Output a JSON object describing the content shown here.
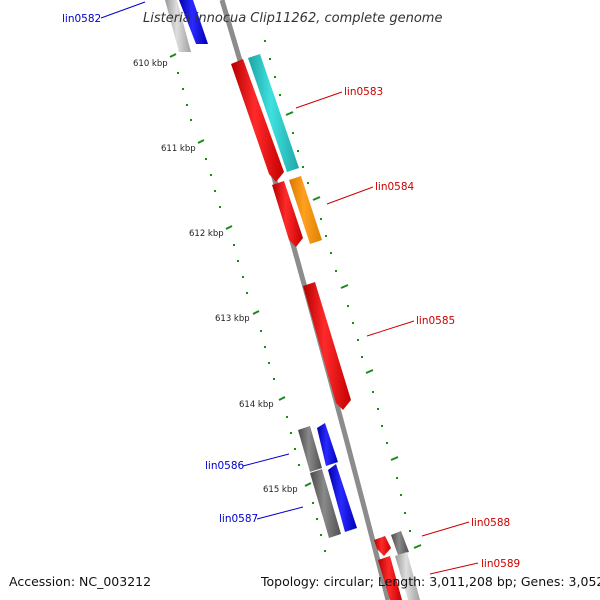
{
  "title": "Listeria innocua Clip11262, complete genome",
  "footer": {
    "accession": "Accession: NC_003212",
    "summary": "Topology: circular; Length: 3,011,208 bp; Genes: 3,052"
  },
  "ruler": {
    "ticks": [
      "610 kbp",
      "611 kbp",
      "612 kbp",
      "613 kbp",
      "614 kbp",
      "615 kbp"
    ]
  },
  "genes": [
    {
      "name": "lin0582",
      "label_color": "#0000cc",
      "side": "left"
    },
    {
      "name": "lin0583",
      "label_color": "#cc0000",
      "side": "right"
    },
    {
      "name": "lin0584",
      "label_color": "#cc0000",
      "side": "right"
    },
    {
      "name": "lin0585",
      "label_color": "#cc0000",
      "side": "right"
    },
    {
      "name": "lin0586",
      "label_color": "#0000cc",
      "side": "left"
    },
    {
      "name": "lin0587",
      "label_color": "#0000cc",
      "side": "left"
    },
    {
      "name": "lin0588",
      "label_color": "#cc0000",
      "side": "right"
    },
    {
      "name": "lin0589",
      "label_color": "#cc0000",
      "side": "right"
    }
  ],
  "colors": {
    "backbone": "#8c8c8c",
    "forward_cds": "#ff1a1a",
    "reverse_cds": "#1a1aff",
    "trna_feature": "#33cccc",
    "other_feature": "#ff9900",
    "gray_feature": "#707070",
    "tick": "#1a8a1a"
  }
}
